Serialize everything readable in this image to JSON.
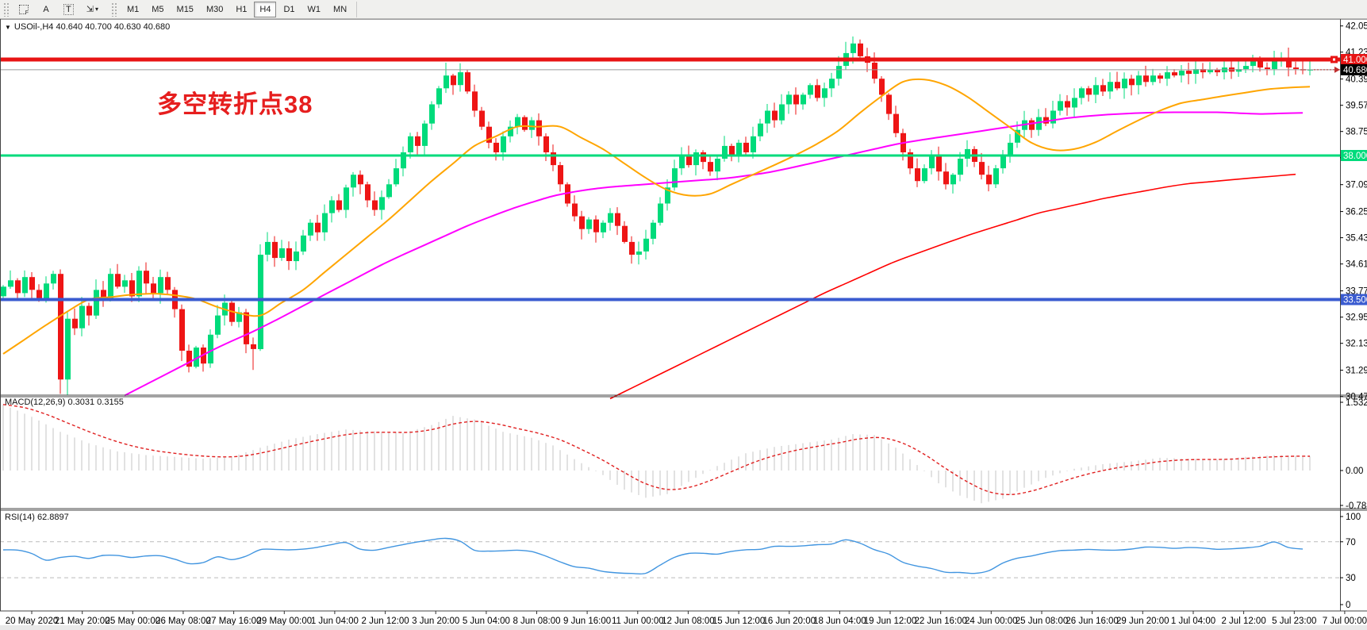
{
  "window": {
    "app_name": "MetaTrader chart"
  },
  "toolbar": {
    "tools": [
      {
        "name": "grid-template-button",
        "glyph": "grid",
        "sub": "F"
      },
      {
        "name": "text-label-button",
        "glyph": "A"
      },
      {
        "name": "text-box-button",
        "glyph": "T",
        "boxed": true
      },
      {
        "name": "arrows-tool-button",
        "glyph": "⇲",
        "caret": "▾"
      }
    ],
    "timeframes": [
      {
        "label": "M1",
        "active": false
      },
      {
        "label": "M5",
        "active": false
      },
      {
        "label": "M15",
        "active": false
      },
      {
        "label": "M30",
        "active": false
      },
      {
        "label": "H1",
        "active": false
      },
      {
        "label": "H4",
        "active": true
      },
      {
        "label": "D1",
        "active": false
      },
      {
        "label": "W1",
        "active": false
      },
      {
        "label": "MN",
        "active": false
      }
    ]
  },
  "chart": {
    "title": "USOil-,H4  40.640 40.700 40.630 40.680",
    "annotation": {
      "text": "多空转折点38",
      "color": "#e61e1e"
    },
    "price_axis_ticks": [
      "42.050",
      "41.230",
      "40.390",
      "39.570",
      "38.750",
      "37.930",
      "37.090",
      "36.250",
      "35.430",
      "34.610",
      "33.770",
      "32.950",
      "32.130",
      "31.290",
      "30.470"
    ],
    "current_price_label": "40.680",
    "hlines": [
      {
        "name": "resistance-line",
        "value": 41.0,
        "label": "41.000",
        "color": "#e81414",
        "width": 5
      },
      {
        "name": "support-line",
        "value": 38.0,
        "label": "38.000",
        "color": "#00DB7B",
        "width": 3
      },
      {
        "name": "lower-support-line",
        "value": 33.5,
        "label": "33.500",
        "color": "#3a5bd0",
        "width": 4
      }
    ],
    "time_axis": [
      "20 May 2020",
      "21 May 20:00",
      "25 May 00:00",
      "26 May 08:00",
      "27 May 16:00",
      "29 May 00:00",
      "1 Jun 04:00",
      "2 Jun 12:00",
      "3 Jun 20:00",
      "5 Jun 04:00",
      "8 Jun 08:00",
      "9 Jun 16:00",
      "11 Jun 00:00",
      "12 Jun 08:00",
      "15 Jun 12:00",
      "16 Jun 20:00",
      "18 Jun 04:00",
      "19 Jun 12:00",
      "22 Jun 16:00",
      "24 Jun 00:00",
      "25 Jun 08:00",
      "26 Jun 16:00",
      "29 Jun 20:00",
      "1 Jul 04:00",
      "2 Jul 12:00",
      "5 Jul 23:00",
      "7 Jul 00:00"
    ]
  },
  "panels": {
    "macd": {
      "label": "MACD(12,26,9) 0.3031 0.3155",
      "scale": [
        {
          "text": "1.5322",
          "v": 1.5322
        },
        {
          "text": "0.00",
          "v": 0
        },
        {
          "text": "-0.7883",
          "v": -0.7883
        }
      ]
    },
    "rsi": {
      "label": "RSI(14) 62.8897",
      "scale": [
        {
          "text": "100",
          "v": 100
        },
        {
          "text": "70",
          "v": 70
        },
        {
          "text": "30",
          "v": 30
        },
        {
          "text": "0",
          "v": 0
        }
      ],
      "levels": [
        70,
        30
      ]
    }
  },
  "chart_data": {
    "type": "candlestick",
    "symbol": "USOil-",
    "timeframe": "H4",
    "ohlc_display": {
      "open": "40.640",
      "high": "40.700",
      "low": "40.630",
      "close": "40.680"
    },
    "y_range": [
      30.47,
      42.05
    ],
    "closes": [
      33.9,
      34.1,
      33.7,
      34.2,
      33.8,
      33.5,
      34.0,
      34.3,
      31.0,
      32.9,
      32.6,
      33.3,
      33.0,
      33.8,
      33.5,
      34.3,
      33.9,
      34.1,
      33.6,
      34.4,
      34.0,
      33.7,
      34.2,
      33.8,
      33.2,
      31.9,
      31.4,
      32.0,
      31.5,
      32.4,
      33.0,
      33.4,
      32.8,
      33.1,
      32.1,
      31.95,
      34.9,
      35.3,
      34.8,
      35.1,
      34.7,
      35.0,
      35.5,
      35.9,
      35.6,
      36.2,
      36.6,
      36.3,
      37.0,
      37.4,
      37.1,
      36.6,
      36.3,
      36.7,
      37.1,
      37.6,
      38.1,
      38.6,
      38.3,
      39.0,
      39.6,
      40.1,
      40.5,
      40.2,
      40.6,
      40.0,
      39.4,
      38.9,
      38.4,
      38.1,
      38.6,
      38.9,
      39.2,
      38.8,
      39.1,
      38.6,
      38.1,
      37.7,
      37.1,
      36.5,
      36.1,
      35.7,
      36.0,
      35.6,
      35.9,
      36.2,
      35.8,
      35.3,
      34.9,
      35.0,
      35.4,
      35.9,
      36.5,
      37.0,
      37.6,
      38.0,
      37.7,
      38.1,
      37.8,
      37.5,
      37.9,
      38.3,
      38.0,
      38.4,
      38.1,
      38.6,
      39.0,
      39.4,
      39.1,
      39.6,
      39.9,
      39.6,
      39.9,
      40.2,
      39.8,
      40.1,
      40.4,
      40.8,
      41.2,
      41.5,
      41.1,
      40.9,
      40.4,
      39.9,
      39.3,
      38.7,
      38.1,
      37.6,
      37.2,
      37.6,
      38.0,
      37.5,
      37.1,
      37.4,
      37.9,
      38.2,
      37.8,
      37.4,
      37.1,
      37.6,
      38.0,
      38.4,
      38.8,
      39.1,
      38.8,
      39.2,
      39.0,
      39.4,
      39.7,
      39.5,
      39.8,
      40.1,
      39.9,
      40.2,
      40.0,
      40.3,
      40.1,
      40.4,
      40.2,
      40.5,
      40.3,
      40.5,
      40.4,
      40.6,
      40.5,
      40.65,
      40.55,
      40.7,
      40.6,
      40.68,
      40.6,
      40.75,
      40.62,
      40.7,
      40.8,
      41.0,
      40.75,
      40.7,
      40.95,
      41.05,
      40.75,
      40.7,
      40.66,
      40.68
    ],
    "first_open": 33.6,
    "wick_overrides": {
      "8": {
        "low": 30.55
      },
      "9": {
        "low": 30.5
      },
      "26": {
        "low": 31.22
      },
      "35": {
        "low": 31.3
      },
      "62": {
        "high": 40.9
      },
      "64": {
        "high": 40.88
      },
      "88": {
        "low": 34.62
      },
      "118": {
        "high": 41.55
      },
      "119": {
        "high": 41.72
      },
      "175": {
        "high": 41.15
      },
      "179": {
        "high": 41.23
      }
    },
    "ma": {
      "orange": [
        [
          0,
          31.8
        ],
        [
          8,
          33.0
        ],
        [
          12,
          33.5
        ],
        [
          20,
          33.7
        ],
        [
          26,
          33.6
        ],
        [
          32,
          33.1
        ],
        [
          36,
          33.0
        ],
        [
          42,
          33.8
        ],
        [
          48,
          34.9
        ],
        [
          54,
          36.0
        ],
        [
          60,
          37.2
        ],
        [
          66,
          38.3
        ],
        [
          72,
          38.9
        ],
        [
          78,
          38.9
        ],
        [
          84,
          38.2
        ],
        [
          90,
          37.3
        ],
        [
          94,
          36.8
        ],
        [
          98,
          36.7
        ],
        [
          104,
          37.3
        ],
        [
          110,
          37.9
        ],
        [
          116,
          38.6
        ],
        [
          122,
          39.7
        ],
        [
          126,
          40.3
        ],
        [
          130,
          40.4
        ],
        [
          134,
          40.0
        ],
        [
          139,
          39.2
        ],
        [
          144,
          38.4
        ],
        [
          148,
          38.1
        ],
        [
          152,
          38.3
        ],
        [
          158,
          39.0
        ],
        [
          164,
          39.6
        ],
        [
          172,
          39.9
        ],
        [
          178,
          40.1
        ],
        [
          183,
          40.15
        ]
      ],
      "magenta": [
        [
          17,
          30.5
        ],
        [
          24,
          31.3
        ],
        [
          30,
          32.0
        ],
        [
          36,
          32.6
        ],
        [
          42,
          33.3
        ],
        [
          48,
          34.0
        ],
        [
          54,
          34.7
        ],
        [
          60,
          35.3
        ],
        [
          66,
          35.9
        ],
        [
          72,
          36.4
        ],
        [
          78,
          36.8
        ],
        [
          84,
          37.0
        ],
        [
          90,
          37.1
        ],
        [
          96,
          37.2
        ],
        [
          102,
          37.3
        ],
        [
          108,
          37.5
        ],
        [
          114,
          37.8
        ],
        [
          120,
          38.1
        ],
        [
          126,
          38.4
        ],
        [
          132,
          38.6
        ],
        [
          138,
          38.8
        ],
        [
          144,
          39.0
        ],
        [
          150,
          39.2
        ],
        [
          156,
          39.3
        ],
        [
          162,
          39.35
        ],
        [
          170,
          39.35
        ],
        [
          176,
          39.3
        ],
        [
          183,
          39.34
        ]
      ],
      "red": [
        [
          85,
          30.4
        ],
        [
          95,
          31.5
        ],
        [
          105,
          32.6
        ],
        [
          115,
          33.7
        ],
        [
          125,
          34.7
        ],
        [
          135,
          35.5
        ],
        [
          145,
          36.2
        ],
        [
          155,
          36.7
        ],
        [
          165,
          37.1
        ],
        [
          175,
          37.3
        ],
        [
          183,
          37.45
        ]
      ]
    },
    "macd": {
      "current_main": "0.3031",
      "current_signal": "0.3155",
      "anchors": [
        [
          0,
          1.45
        ],
        [
          4,
          1.18
        ],
        [
          8,
          0.85
        ],
        [
          12,
          0.6
        ],
        [
          16,
          0.42
        ],
        [
          20,
          0.34
        ],
        [
          24,
          0.3
        ],
        [
          28,
          0.26
        ],
        [
          32,
          0.3
        ],
        [
          36,
          0.5
        ],
        [
          40,
          0.68
        ],
        [
          44,
          0.8
        ],
        [
          48,
          0.9
        ],
        [
          52,
          0.86
        ],
        [
          56,
          0.82
        ],
        [
          60,
          1.0
        ],
        [
          63,
          1.2
        ],
        [
          66,
          1.12
        ],
        [
          70,
          0.85
        ],
        [
          74,
          0.72
        ],
        [
          77,
          0.55
        ],
        [
          80,
          0.25
        ],
        [
          84,
          -0.1
        ],
        [
          87,
          -0.42
        ],
        [
          90,
          -0.6
        ],
        [
          93,
          -0.52
        ],
        [
          96,
          -0.25
        ],
        [
          100,
          0.1
        ],
        [
          104,
          0.38
        ],
        [
          108,
          0.52
        ],
        [
          112,
          0.6
        ],
        [
          116,
          0.68
        ],
        [
          119,
          0.8
        ],
        [
          122,
          0.78
        ],
        [
          125,
          0.5
        ],
        [
          128,
          0.12
        ],
        [
          131,
          -0.28
        ],
        [
          134,
          -0.55
        ],
        [
          137,
          -0.72
        ],
        [
          140,
          -0.62
        ],
        [
          143,
          -0.38
        ],
        [
          146,
          -0.16
        ],
        [
          150,
          0.04
        ],
        [
          154,
          0.14
        ],
        [
          158,
          0.2
        ],
        [
          162,
          0.28
        ],
        [
          166,
          0.26
        ],
        [
          170,
          0.24
        ],
        [
          174,
          0.3
        ],
        [
          178,
          0.34
        ],
        [
          183,
          0.31
        ]
      ]
    },
    "rsi": {
      "current": "62.8897",
      "anchors": [
        [
          0,
          62
        ],
        [
          3,
          60
        ],
        [
          6,
          48
        ],
        [
          9,
          55
        ],
        [
          12,
          52
        ],
        [
          15,
          56
        ],
        [
          18,
          53
        ],
        [
          21,
          57
        ],
        [
          24,
          50
        ],
        [
          27,
          44
        ],
        [
          30,
          52
        ],
        [
          33,
          48
        ],
        [
          36,
          62
        ],
        [
          39,
          60
        ],
        [
          42,
          63
        ],
        [
          45,
          66
        ],
        [
          48,
          68
        ],
        [
          51,
          60
        ],
        [
          54,
          65
        ],
        [
          57,
          70
        ],
        [
          60,
          73
        ],
        [
          63,
          75
        ],
        [
          66,
          62
        ],
        [
          69,
          58
        ],
        [
          72,
          62
        ],
        [
          75,
          58
        ],
        [
          78,
          48
        ],
        [
          81,
          40
        ],
        [
          84,
          38
        ],
        [
          87,
          33
        ],
        [
          90,
          36
        ],
        [
          93,
          48
        ],
        [
          96,
          58
        ],
        [
          99,
          55
        ],
        [
          102,
          58
        ],
        [
          105,
          62
        ],
        [
          108,
          65
        ],
        [
          111,
          63
        ],
        [
          114,
          66
        ],
        [
          117,
          70
        ],
        [
          119,
          73
        ],
        [
          122,
          62
        ],
        [
          125,
          52
        ],
        [
          128,
          42
        ],
        [
          131,
          38
        ],
        [
          134,
          35
        ],
        [
          137,
          33
        ],
        [
          140,
          45
        ],
        [
          143,
          55
        ],
        [
          146,
          57
        ],
        [
          149,
          60
        ],
        [
          152,
          62
        ],
        [
          155,
          60
        ],
        [
          158,
          62
        ],
        [
          161,
          64
        ],
        [
          164,
          62
        ],
        [
          167,
          63
        ],
        [
          170,
          62
        ],
        [
          173,
          63
        ],
        [
          176,
          64
        ],
        [
          178,
          71
        ],
        [
          180,
          63
        ],
        [
          183,
          63
        ]
      ]
    },
    "colors": {
      "bull": "#00DB7B",
      "bear": "#ee1515",
      "ma_orange": "#FFA500",
      "ma_magenta": "#FF00FF",
      "ma_red": "#ff0000",
      "macd_bar": "#c6c6c6",
      "macd_signal": "#e02020",
      "rsi_line": "#4195e0"
    }
  }
}
